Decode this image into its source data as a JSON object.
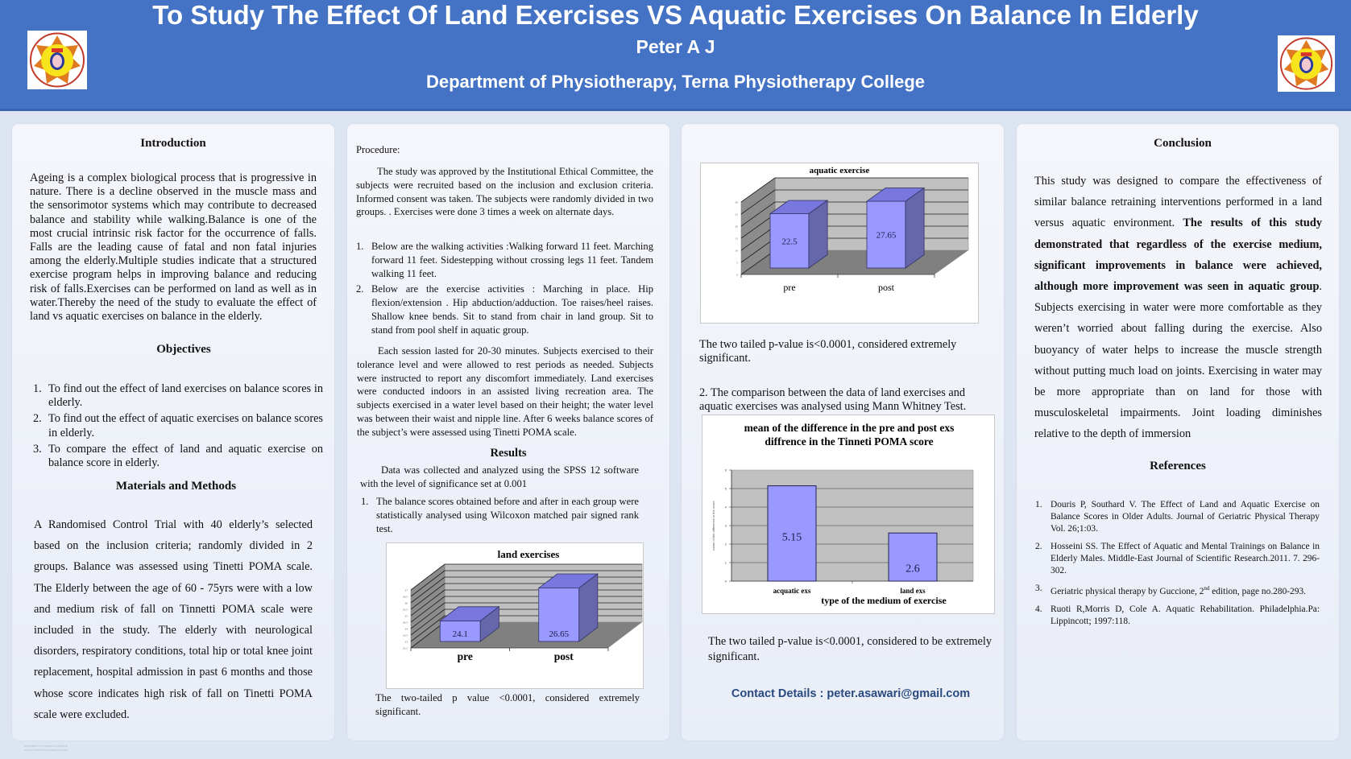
{
  "header": {
    "title": "To Study The Effect Of Land Exercises VS Aquatic Exercises On Balance In Elderly",
    "author": "Peter A J",
    "department": "Department of Physiotherapy, Terna Physiotherapy College",
    "logo_icon": "college-emblem-icon"
  },
  "introduction": {
    "heading": "Introduction",
    "body": "Ageing is a complex biological process that is progressive in nature. There is a decline observed in the muscle mass and the sensorimotor systems which may contribute to decreased balance and stability while walking.Balance is one of the most crucial intrinsic risk factor for the occurrence of falls. Falls are the leading cause of fatal and non fatal injuries among the elderly.Multiple studies indicate that a structured exercise program helps in improving balance and reducing risk of falls.Exercises can be performed on land as well as in water.Thereby the need of the study to evaluate the effect of land vs aquatic exercises on balance in the elderly."
  },
  "objectives": {
    "heading": "Objectives",
    "items": [
      {
        "num": "1.",
        "text": "To find out the effect of land exercises on   balance scores in elderly."
      },
      {
        "num": "2.",
        "text": "To find out the effect of aquatic exercises on balance scores in elderly."
      },
      {
        "num": "3.",
        "text": "To compare the effect of land and aquatic exercise on balance score in elderly."
      }
    ]
  },
  "methods": {
    "heading": "Materials and Methods",
    "body": "A Randomised Control Trial with 40 elderly’s selected based on the inclusion criteria; randomly divided in 2 groups. Balance was assessed using Tinetti POMA scale. The Elderly between the age of 60 - 75yrs were with a low and medium risk of fall on Tinnetti POMA scale were included in the study. The elderly with neurological disorders, respiratory conditions, total hip or total knee joint replacement, hospital admission in past 6 months and those whose score indicates high risk of fall on Tinetti POMA scale were excluded."
  },
  "procedure": {
    "heading": "Procedure:",
    "intro": "The study was approved by the Institutional Ethical Committee, the subjects were recruited based on the inclusion and exclusion criteria. Informed consent was taken. The subjects were randomly divided in two groups. . Exercises were done 3 times a week on alternate days.",
    "items": [
      {
        "num": "1.",
        "text": "Below are the walking activities :Walking forward 11 feet. Marching forward 11 feet. Sidestepping without crossing legs 11 feet. Tandem walking 11 feet."
      },
      {
        "num": "2.",
        "text": "Below are the exercise activities : Marching in place. Hip flexion/extension . Hip abduction/adduction. Toe raises/heel raises. Shallow knee bends. Sit to stand from chair in land group. Sit to stand from pool shelf in aquatic group."
      }
    ],
    "session": "Each session lasted for 20-30 minutes. Subjects exercised to their tolerance level and were allowed to rest periods as needed. Subjects were instructed to report any discomfort immediately. Land exercises were conducted indoors in an assisted living recreation area. The subjects exercised in a water level based on their height; the water level was between their waist and nipple line. After 6 weeks balance scores of the subject’s were assessed using Tinetti POMA scale."
  },
  "results": {
    "heading": "Results",
    "intro": "Data was collected and analyzed using the SPSS 12 software with the level of significance set at 0.001",
    "item1": {
      "num": "1.",
      "text": "The balance scores obtained before and after in each group were statistically analysed using Wilcoxon matched pair signed rank test."
    },
    "land_caption": "The two-tailed p value <0.0001, considered extremely significant.",
    "aquatic_caption": "The two tailed p-value is<0.0001, considered extremely significant.",
    "item2": "2. The comparison between the data of land exercises and aquatic exercises was analysed using Mann Whitney Test.",
    "diff_caption": "The two tailed p-value is<0.0001, considered to be extremely significant."
  },
  "contact": "Contact Details : peter.asawari@gmail.com",
  "conclusion": {
    "heading": "Conclusion",
    "part1": "This study was designed to compare the effectiveness of similar balance retraining interventions performed in a land versus aquatic environment. ",
    "bold": "The results of this study demonstrated that regardless of the exercise medium, significant improvements in balance were achieved, although more improvement was seen in aquatic group",
    "part2": ". Subjects exercising in water were more comfortable as they weren’t worried about falling during the exercise. Also buoyancy of water helps to increase the muscle strength without putting much load on joints. Exercising in water may be more appropriate than on land for those with musculoskeletal impairments. Joint loading diminishes relative to the depth of immersion"
  },
  "references": {
    "heading": "References",
    "items": [
      {
        "num": "1.",
        "text": " Douris P, Southard V. The Effect of Land and Aquatic Exercise on Balance Scores in Older Adults. Journal of Geriatric Physical Therapy Vol. 26;1:03."
      },
      {
        "num": "2.",
        "text": " Hosseini SS. The Effect of Aquatic and Mental Trainings on Balance in Elderly Males. Middle-East Journal of Scientific Research.2011. 7. 296-302."
      },
      {
        "num": "3.",
        "text": "Geriatric physical therapy by Guccione, 2nd edition, page no.280-293."
      },
      {
        "num": "4.",
        "text": "Ruoti R,Morris D, Cole A. Aquatic Rehabilitation. Philadelphia.Pa: Lippincott; 1997:118."
      }
    ]
  },
  "colors": {
    "header_bg": "#4472c4",
    "bar_front": "#9999ff",
    "bar_top": "#7777dd",
    "bar_side": "#6666aa",
    "chart_wall": "#c0c0c0",
    "chart_floor": "#808080",
    "contact_text": "#2a4a7f"
  },
  "chart_data": [
    {
      "id": "land",
      "type": "bar",
      "style": "3d",
      "title": "land exercises",
      "categories": [
        "pre",
        "post"
      ],
      "values": [
        24.1,
        26.65
      ],
      "data_labels": [
        "24.1",
        "26.65"
      ],
      "ylim": [
        22.5,
        27
      ],
      "yticks": [
        "22.5",
        "23",
        "23.5",
        "24",
        "24.5",
        "25",
        "25.5",
        "26",
        "26.5",
        "27"
      ],
      "xlabel": "",
      "ylabel": "",
      "grid": true,
      "legend": "none"
    },
    {
      "id": "aquatic",
      "type": "bar",
      "style": "3d",
      "title": "aquatic exercise",
      "categories": [
        "pre",
        "post"
      ],
      "values": [
        22.5,
        27.65
      ],
      "data_labels": [
        "22.5",
        "27.65"
      ],
      "ylim": [
        0,
        30
      ],
      "yticks": [
        "0",
        "5",
        "10",
        "15",
        "20",
        "25",
        "30"
      ],
      "xlabel": "",
      "ylabel": "",
      "grid": true,
      "legend": "none"
    },
    {
      "id": "diff",
      "type": "bar",
      "style": "2d",
      "title": "mean of the difference in the pre and post exs diffrence in the Tinneti POMA score",
      "title_lines": [
        "mean of the difference in the pre and post exs",
        "diffrence in the Tinneti POMA score"
      ],
      "categories": [
        "acquatic exs",
        "land exs"
      ],
      "values": [
        5.15,
        2.6
      ],
      "data_labels": [
        "5.15",
        "2.6"
      ],
      "ylim": [
        0,
        6
      ],
      "yticks": [
        "0",
        "1",
        "2",
        "3",
        "4",
        "5",
        "6"
      ],
      "xlabel": "type of the medium of exercise",
      "ylabel": "mean of the difference in the score",
      "grid": true,
      "legend": "none"
    }
  ],
  "footer_watermark": [
    "templates for research posters",
    "www.PosterPresentations.com"
  ]
}
